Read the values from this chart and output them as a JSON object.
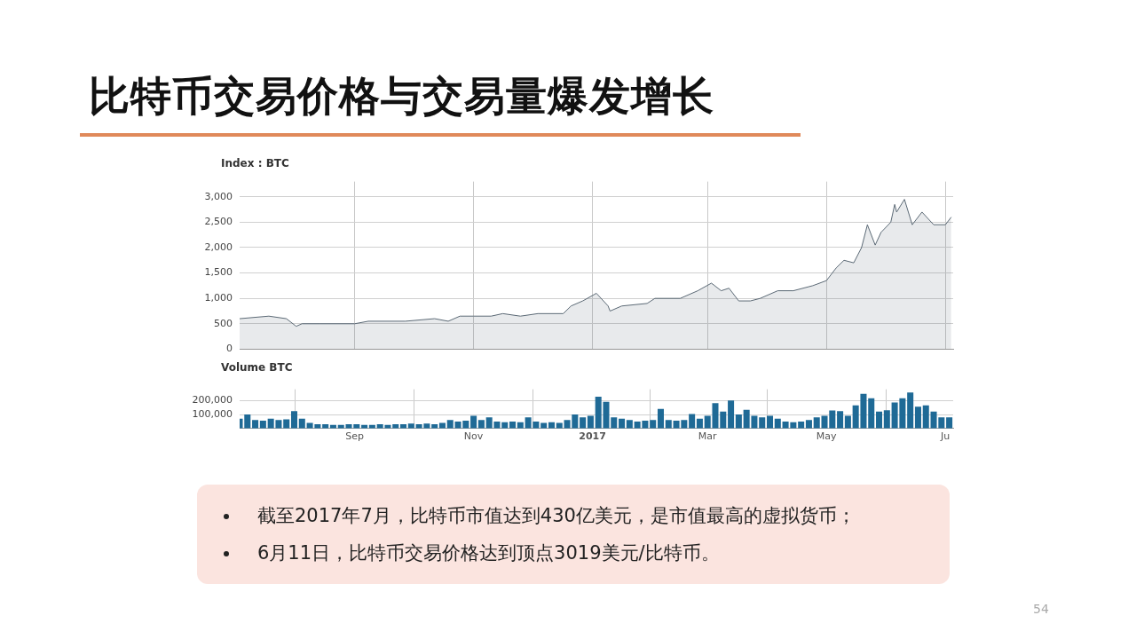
{
  "chart_data": [
    {
      "type": "area",
      "title": "比特币交易价格与交易量爆发增长",
      "subtitle": "Index : BTC",
      "x": [
        "2016-07-04",
        "2016-07-19",
        "2016-07-28",
        "2016-08-02",
        "2016-08-05",
        "2016-08-14",
        "2016-09-01",
        "2016-09-08",
        "2016-09-27",
        "2016-10-12",
        "2016-10-19",
        "2016-10-25",
        "2016-11-01",
        "2016-11-10",
        "2016-11-16",
        "2016-11-25",
        "2016-12-04",
        "2016-12-17",
        "2016-12-21",
        "2016-12-27",
        "2017-01-03",
        "2017-01-09",
        "2017-01-10",
        "2017-01-16",
        "2017-01-29",
        "2017-02-02",
        "2017-02-15",
        "2017-02-24",
        "2017-03-03",
        "2017-03-08",
        "2017-03-12",
        "2017-03-17",
        "2017-03-23",
        "2017-03-28",
        "2017-04-06",
        "2017-04-14",
        "2017-04-24",
        "2017-05-01",
        "2017-05-06",
        "2017-05-10",
        "2017-05-15",
        "2017-05-19",
        "2017-05-22",
        "2017-05-26",
        "2017-05-29",
        "2017-06-03",
        "2017-06-05",
        "2017-06-06",
        "2017-06-10",
        "2017-06-14",
        "2017-06-19",
        "2017-06-25",
        "2017-07-01",
        "2017-07-04"
      ],
      "series": [
        {
          "color": "#5b6975",
          "values": [
            600,
            650,
            600,
            450,
            500,
            500,
            500,
            550,
            550,
            600,
            550,
            650,
            650,
            650,
            700,
            650,
            700,
            700,
            850,
            950,
            1100,
            850,
            750,
            850,
            900,
            1000,
            1000,
            1150,
            1300,
            1150,
            1200,
            950,
            950,
            1000,
            1150,
            1150,
            1250,
            1350,
            1600,
            1750,
            1700,
            2000,
            2450,
            2050,
            2300,
            2500,
            2850,
            2700,
            2950,
            2450,
            2700,
            2450,
            2450,
            2600
          ]
        }
      ],
      "xlim": [
        "2016-07-04",
        "2017-07-05"
      ],
      "xticks": [
        {
          "value": "2016-09-01",
          "label": null
        },
        {
          "value": "2016-11-01",
          "label": null
        },
        {
          "value": "2017-01-01",
          "label": null
        },
        {
          "value": "2017-03-01",
          "label": null
        },
        {
          "value": "2017-05-01",
          "label": null
        },
        {
          "value": "2017-07-01",
          "label": null
        }
      ],
      "ylim": [
        0,
        3300
      ],
      "yticks": [
        0,
        500,
        {
          "value": 1000,
          "label": "1,000"
        },
        {
          "value": 1500,
          "label": "1,500"
        },
        {
          "value": 2000,
          "label": "2,000"
        },
        {
          "value": 2500,
          "label": "2,500"
        },
        {
          "value": 3000,
          "label": "3,000"
        }
      ],
      "grid": true,
      "legend": false,
      "marker": "none",
      "tick_labels": "y"
    },
    {
      "type": "bar",
      "title": "Volume BTC",
      "x": [
        "2016-07-04",
        "2016-07-08",
        "2016-07-12",
        "2016-07-16",
        "2016-07-20",
        "2016-07-24",
        "2016-07-28",
        "2016-08-01",
        "2016-08-05",
        "2016-08-09",
        "2016-08-13",
        "2016-08-17",
        "2016-08-21",
        "2016-08-25",
        "2016-08-29",
        "2016-09-02",
        "2016-09-06",
        "2016-09-10",
        "2016-09-14",
        "2016-09-18",
        "2016-09-22",
        "2016-09-26",
        "2016-09-30",
        "2016-10-04",
        "2016-10-08",
        "2016-10-12",
        "2016-10-16",
        "2016-10-20",
        "2016-10-24",
        "2016-10-28",
        "2016-11-01",
        "2016-11-05",
        "2016-11-09",
        "2016-11-13",
        "2016-11-17",
        "2016-11-21",
        "2016-11-25",
        "2016-11-29",
        "2016-12-03",
        "2016-12-07",
        "2016-12-11",
        "2016-12-15",
        "2016-12-19",
        "2016-12-23",
        "2016-12-27",
        "2016-12-31",
        "2017-01-04",
        "2017-01-08",
        "2017-01-12",
        "2017-01-16",
        "2017-01-20",
        "2017-01-24",
        "2017-01-28",
        "2017-02-01",
        "2017-02-05",
        "2017-02-09",
        "2017-02-13",
        "2017-02-17",
        "2017-02-21",
        "2017-02-25",
        "2017-03-01",
        "2017-03-05",
        "2017-03-09",
        "2017-03-13",
        "2017-03-17",
        "2017-03-21",
        "2017-03-25",
        "2017-03-29",
        "2017-04-02",
        "2017-04-06",
        "2017-04-10",
        "2017-04-14",
        "2017-04-18",
        "2017-04-22",
        "2017-04-26",
        "2017-04-30",
        "2017-05-04",
        "2017-05-08",
        "2017-05-12",
        "2017-05-16",
        "2017-05-20",
        "2017-05-24",
        "2017-05-28",
        "2017-06-01",
        "2017-06-05",
        "2017-06-09",
        "2017-06-13",
        "2017-06-17",
        "2017-06-21",
        "2017-06-25",
        "2017-06-29",
        "2017-07-03"
      ],
      "series": [
        {
          "color": "#1f6a96",
          "values": [
            70000,
            100000,
            60000,
            55000,
            70000,
            60000,
            65000,
            124000,
            70000,
            40000,
            30000,
            30000,
            25000,
            25000,
            30000,
            30000,
            25000,
            25000,
            30000,
            25000,
            30000,
            30000,
            35000,
            30000,
            35000,
            30000,
            40000,
            60000,
            50000,
            55000,
            90000,
            60000,
            80000,
            50000,
            45000,
            50000,
            45000,
            80000,
            50000,
            40000,
            45000,
            40000,
            60000,
            100000,
            80000,
            90000,
            226000,
            190000,
            80000,
            70000,
            60000,
            50000,
            55000,
            60000,
            140000,
            60000,
            55000,
            60000,
            103000,
            70000,
            90000,
            181000,
            120000,
            200000,
            100000,
            134000,
            90000,
            80000,
            90000,
            70000,
            50000,
            45000,
            50000,
            60000,
            80000,
            90000,
            128000,
            124000,
            90000,
            165000,
            247000,
            216000,
            120000,
            130000,
            185000,
            216000,
            257000,
            155000,
            165000,
            120000,
            80000,
            80000
          ]
        }
      ],
      "xlim": [
        "2016-07-04",
        "2017-07-05"
      ],
      "xticks": [
        {
          "value": "2016-09-01",
          "label": "Sep"
        },
        {
          "value": "2016-11-01",
          "label": "Nov"
        },
        {
          "value": "2017-01-01",
          "label": "2017"
        },
        {
          "value": "2017-03-01",
          "label": "Mar"
        },
        {
          "value": "2017-05-01",
          "label": "May"
        },
        {
          "value": "2017-07-01",
          "label": "Ju"
        }
      ],
      "ylim": [
        0,
        280000
      ],
      "yticks": [
        {
          "value": 100000,
          "label": "100,000"
        },
        {
          "value": 200000,
          "label": "200,000"
        }
      ],
      "grid": true,
      "legend": false,
      "annotations": [
        "截至2017年7月，比特币市值达到430亿美元，是市值最高的虚拟货币；",
        "6月11日，比特币交易价格达到顶点3019美元/比特币。",
        "54"
      ]
    }
  ]
}
